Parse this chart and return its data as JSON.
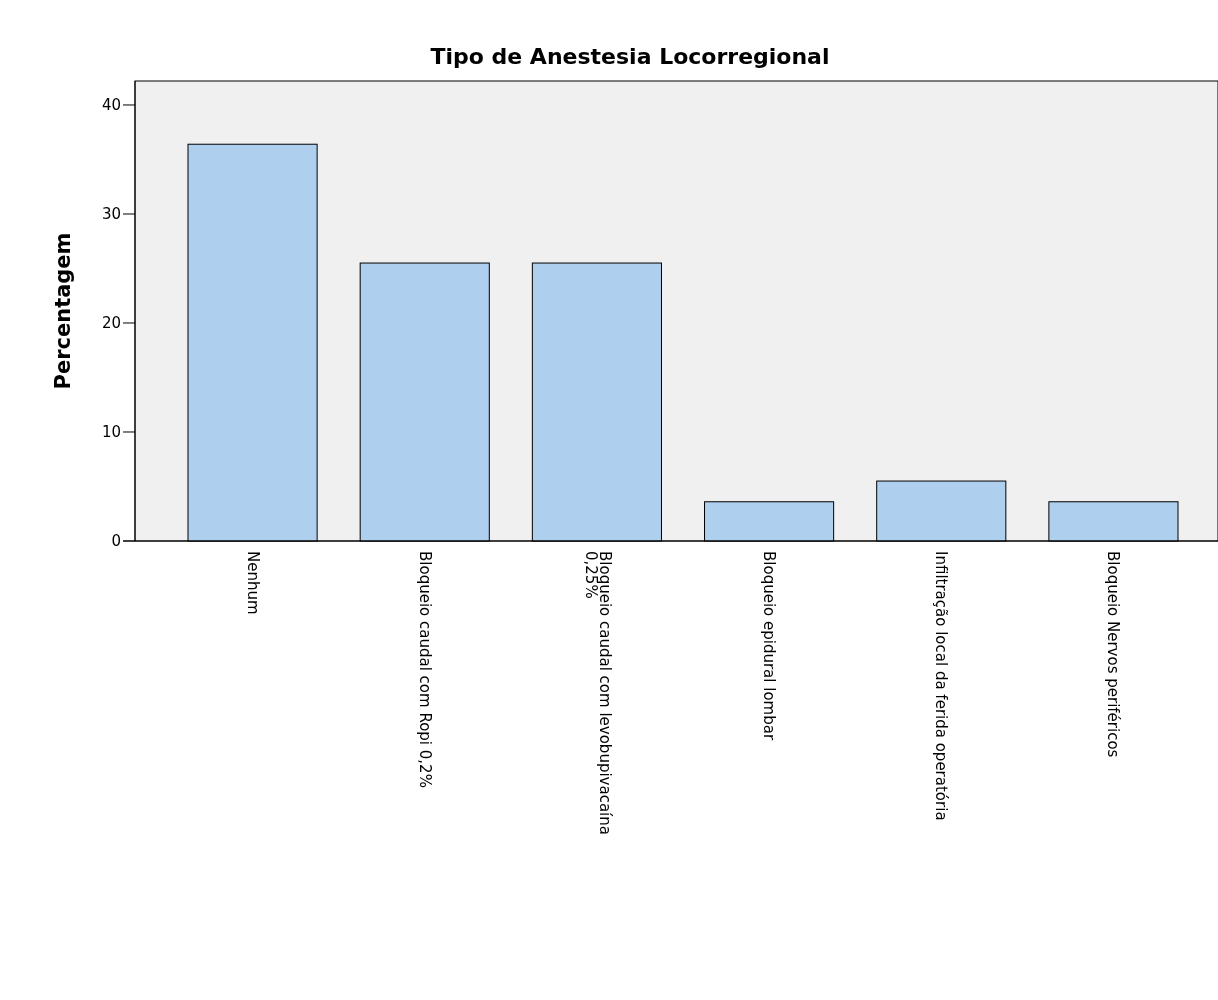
{
  "chart_data": {
    "type": "bar",
    "title": "Tipo de Anestesia Locorregional",
    "ylabel": "Percentagem",
    "categories": [
      "Nenhum",
      "Bloqueio caudal com Ropi 0,2%",
      "Bloqueio caudal com levobupivacaína 0,25%",
      "Bloqueio epidural lombar",
      "Infiltração local da ferida operatória",
      "Bloqueio Nervos periféricos"
    ],
    "values": [
      36.4,
      25.5,
      25.5,
      3.6,
      5.5,
      3.6
    ],
    "color": "#aed0ee",
    "ylim": [
      0,
      42.2
    ],
    "yticks": [
      0,
      10,
      20,
      30,
      40
    ]
  }
}
